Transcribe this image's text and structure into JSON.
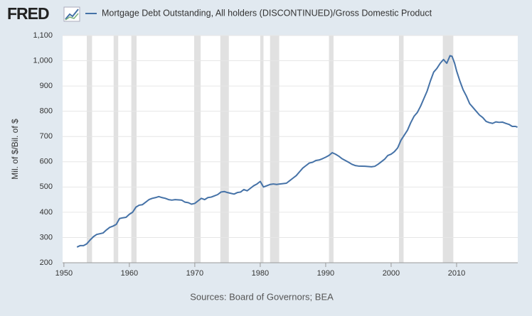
{
  "chart_data": {
    "type": "line",
    "logo": "FRED",
    "ylabel": "Mil. of $/Bil. of $",
    "source": "Sources: Board of Governors; BEA",
    "xlim": [
      1949.8,
      2019.35
    ],
    "ylim": [
      200,
      1100
    ],
    "xticks": [
      1950,
      1960,
      1970,
      1980,
      1990,
      2000,
      2010
    ],
    "yticks": [
      200,
      300,
      400,
      500,
      600,
      700,
      800,
      900,
      {
        "value": 1000,
        "label": "1,000"
      },
      {
        "value": 1100,
        "label": "1,100"
      }
    ],
    "grid": true,
    "recessions": [
      [
        1953.5,
        1954.3
      ],
      [
        1957.6,
        1958.3
      ],
      [
        1960.3,
        1961.1
      ],
      [
        1969.9,
        1970.9
      ],
      [
        1973.9,
        1975.2
      ],
      [
        1980.0,
        1980.5
      ],
      [
        1981.5,
        1982.9
      ],
      [
        1990.5,
        1991.2
      ],
      [
        2001.2,
        2001.9
      ],
      [
        2007.9,
        2009.5
      ]
    ],
    "recession_color": "#e1e1e1",
    "series": [
      {
        "name": "Mortgage Debt Outstanding, All holders (DISCONTINUED)/Gross Domestic Product",
        "color": "#4572a7",
        "x": [
          1952,
          1952.5,
          1953,
          1953.5,
          1954,
          1954.5,
          1955,
          1956,
          1956.5,
          1957,
          1957.5,
          1958,
          1958.5,
          1959,
          1959.5,
          1960,
          1960.5,
          1961,
          1961.5,
          1962,
          1962.5,
          1963,
          1963.5,
          1964,
          1964.5,
          1965,
          1965.5,
          1966,
          1966.5,
          1967,
          1968,
          1968.5,
          1969,
          1969.5,
          1970,
          1970.5,
          1971,
          1971.5,
          1972,
          1972.5,
          1973,
          1973.5,
          1974,
          1974.5,
          1975,
          1975.5,
          1976,
          1976.5,
          1977,
          1977.5,
          1978,
          1978.5,
          1979,
          1979.5,
          1980,
          1980.5,
          1981,
          1981.5,
          1982,
          1982.5,
          1983,
          1984,
          1984.5,
          1985,
          1985.5,
          1986,
          1986.5,
          1987,
          1987.5,
          1988,
          1988.5,
          1989,
          1989.5,
          1990,
          1990.5,
          1991,
          1991.5,
          1992,
          1992.5,
          1993,
          1993.5,
          1994,
          1994.5,
          1995,
          1996,
          1997,
          1997.5,
          1998,
          1998.5,
          1999,
          1999.5,
          2000,
          2000.5,
          2001,
          2001.5,
          2002,
          2002.5,
          2003,
          2003.5,
          2004,
          2004.5,
          2005,
          2005.5,
          2006,
          2006.5,
          2007,
          2007.5,
          2008,
          2008.5,
          2009,
          2009.3,
          2009.7,
          2010,
          2010.5,
          2011,
          2011.5,
          2012,
          2012.5,
          2013,
          2013.5,
          2014,
          2014.5,
          2015,
          2015.5,
          2016,
          2016.5,
          2017,
          2017.5,
          2018,
          2018.5,
          2019,
          2019.3
        ],
        "values": [
          262,
          268,
          268,
          275,
          290,
          303,
          312,
          318,
          330,
          340,
          345,
          352,
          375,
          378,
          380,
          392,
          400,
          420,
          428,
          430,
          440,
          450,
          455,
          458,
          462,
          458,
          455,
          450,
          448,
          450,
          448,
          440,
          438,
          432,
          435,
          445,
          455,
          450,
          458,
          460,
          465,
          470,
          480,
          482,
          478,
          475,
          472,
          478,
          480,
          490,
          485,
          495,
          505,
          512,
          522,
          500,
          505,
          510,
          512,
          510,
          512,
          515,
          525,
          535,
          545,
          560,
          575,
          585,
          595,
          598,
          605,
          607,
          612,
          618,
          625,
          636,
          630,
          622,
          612,
          605,
          598,
          590,
          585,
          583,
          582,
          580,
          582,
          590,
          600,
          610,
          625,
          630,
          640,
          655,
          685,
          705,
          725,
          755,
          780,
          795,
          820,
          850,
          880,
          920,
          955,
          970,
          990,
          1005,
          990,
          1020,
          1018,
          990,
          960,
          920,
          885,
          860,
          830,
          815,
          800,
          785,
          775,
          760,
          755,
          752,
          758,
          756,
          757,
          752,
          748,
          740,
          740,
          737
        ]
      }
    ]
  }
}
